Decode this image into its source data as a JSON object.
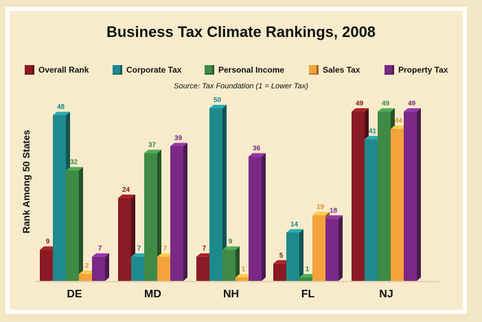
{
  "chart_data": {
    "type": "bar",
    "title": "Business Tax Climate Rankings, 2008",
    "subtitle": "Source:  Tax Foundation     (1 = Lower Tax)",
    "ylabel": "Rank Among 50 States",
    "xlabel": "",
    "ylim": [
      0,
      50
    ],
    "grid": false,
    "legend_position": "top",
    "categories": [
      "DE",
      "MD",
      "NH",
      "FL",
      "NJ"
    ],
    "series": [
      {
        "name": "Overall Rank",
        "color": "#8a1a24",
        "values": [
          9,
          24,
          7,
          5,
          49
        ]
      },
      {
        "name": "Corporate Tax",
        "color": "#1f8a8d",
        "values": [
          48,
          7,
          50,
          14,
          41
        ]
      },
      {
        "name": "Personal Income",
        "color": "#3f8a45",
        "values": [
          32,
          37,
          9,
          1,
          49
        ]
      },
      {
        "name": "Sales Tax",
        "color": "#f4a23a",
        "values": [
          2,
          7,
          1,
          19,
          44
        ]
      },
      {
        "name": "Property Tax",
        "color": "#7a2a86",
        "values": [
          7,
          39,
          36,
          18,
          49
        ]
      }
    ]
  }
}
